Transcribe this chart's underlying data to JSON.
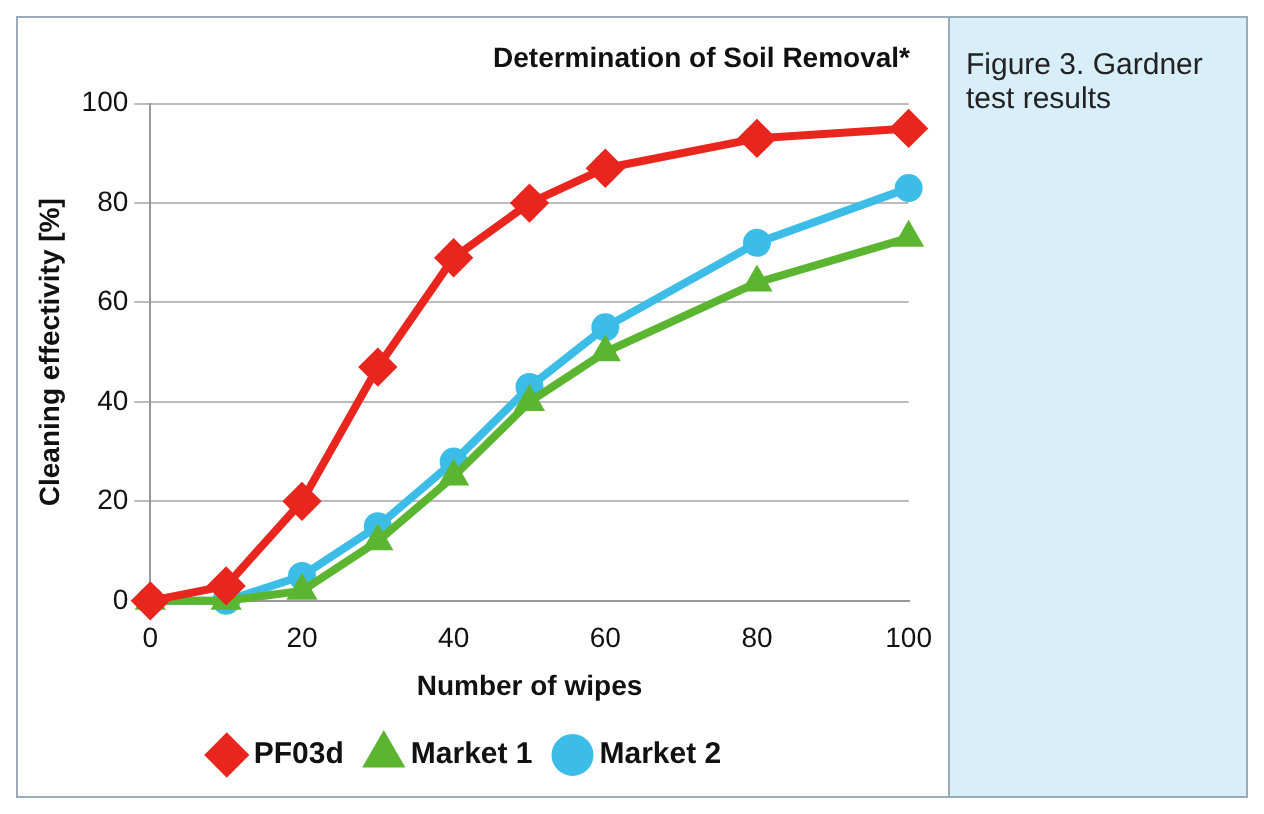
{
  "chart_data": {
    "type": "line",
    "title": "Determination of Soil Removal*",
    "xlabel": "Number of wipes",
    "ylabel": "Cleaning effectivity [%]",
    "x": [
      0,
      10,
      20,
      30,
      40,
      50,
      60,
      80,
      100
    ],
    "series": [
      {
        "name": "PF03d",
        "color": "#e8261e",
        "marker": "diamond",
        "values": [
          0,
          3,
          20,
          47,
          69,
          80,
          87,
          93,
          95
        ]
      },
      {
        "name": "Market 1",
        "color": "#5cb531",
        "marker": "triangle",
        "values": [
          0,
          0,
          2,
          12,
          25,
          40,
          50,
          64,
          73
        ]
      },
      {
        "name": "Market 2",
        "color": "#3cbde8",
        "marker": "circle",
        "values": [
          0,
          0,
          5,
          15,
          28,
          43,
          55,
          72,
          83
        ]
      }
    ],
    "xlim": [
      0,
      100
    ],
    "xticks": [
      0,
      20,
      40,
      60,
      80,
      100
    ],
    "ylim": [
      0,
      100
    ],
    "yticks": [
      0,
      20,
      40,
      60,
      80,
      100
    ],
    "grid": "y",
    "legend": "bottom",
    "line_style": "solid",
    "annotations": [
      "Figure 3. Gardner test results"
    ]
  }
}
